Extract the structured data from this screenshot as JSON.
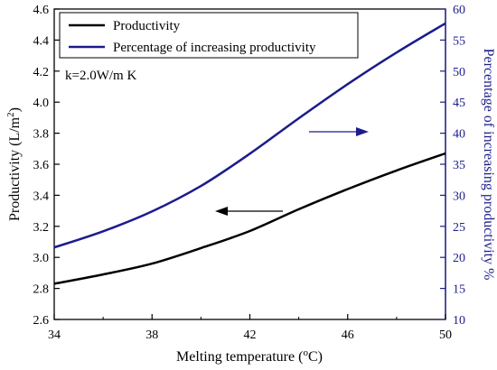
{
  "chart_data": {
    "type": "line",
    "xlabel": "Melting temperature (",
    "xlabel_unit": "C)",
    "xlabel_degree": "o",
    "ylabel": "Productivity (L/m",
    "ylabel_sup": "2",
    "ylabel_end": ")",
    "y2label": "Percentage of increasing productivity %",
    "xlim": [
      34,
      50
    ],
    "ylim": [
      2.6,
      4.6
    ],
    "y2lim": [
      10,
      60
    ],
    "xticks": [
      "34",
      "38",
      "42",
      "46",
      "50"
    ],
    "yticks": [
      "2.6",
      "2.8",
      "3.0",
      "3.2",
      "3.4",
      "3.6",
      "3.8",
      "4.0",
      "4.2",
      "4.4",
      "4.6"
    ],
    "y2ticks": [
      "10",
      "15",
      "20",
      "25",
      "30",
      "35",
      "40",
      "45",
      "50",
      "55",
      "60"
    ],
    "annotation": "k=2.0W/m K",
    "legend_position": "top-left",
    "series": [
      {
        "name": "Productivity",
        "axis": "left",
        "color": "#000000",
        "x": [
          34,
          36,
          38,
          40,
          42,
          44,
          46,
          48,
          50
        ],
        "y": [
          2.83,
          2.89,
          2.96,
          3.06,
          3.17,
          3.31,
          3.44,
          3.56,
          3.67
        ]
      },
      {
        "name": "Percentage of increasing productivity",
        "axis": "right",
        "color": "#1c1c8c",
        "x": [
          34,
          36,
          38,
          40,
          42,
          44,
          46,
          48,
          50
        ],
        "y": [
          21.6,
          24.2,
          27.4,
          31.5,
          36.7,
          42.4,
          47.9,
          53.0,
          57.7
        ]
      }
    ]
  }
}
